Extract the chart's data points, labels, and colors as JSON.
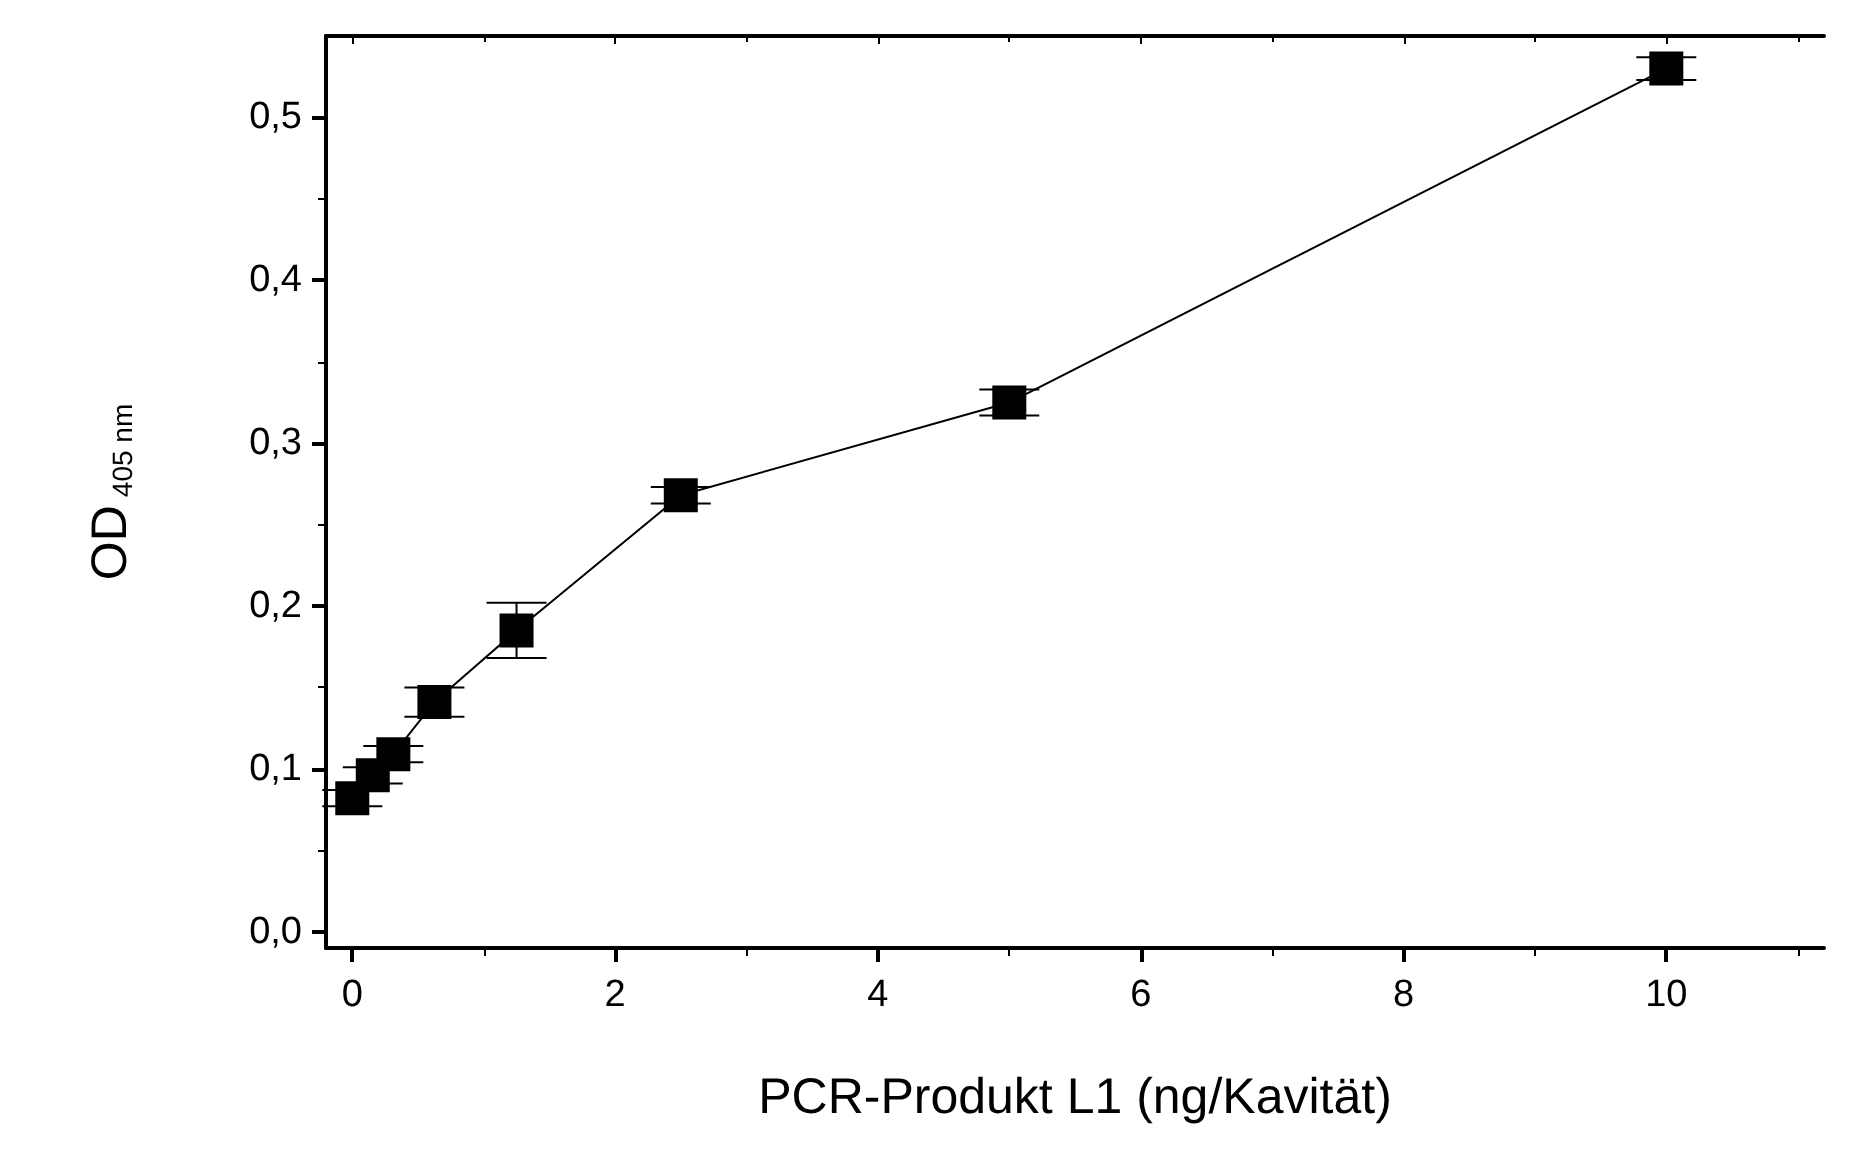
{
  "chart_data": {
    "type": "line",
    "xlabel": "PCR-Produkt L1 (ng/Kavität)",
    "ylabel": "OD$_{405 nm}$",
    "x": [
      0,
      0.156,
      0.3125,
      0.625,
      1.25,
      2.5,
      5,
      10
    ],
    "series": [
      {
        "color": "#000000",
        "values": [
          0.082,
          0.096,
          0.109,
          0.141,
          0.185,
          0.268,
          0.325,
          0.53
        ],
        "errors": [
          0.005,
          0.005,
          0.005,
          0.009,
          0.017,
          0.005,
          0.008,
          0.007
        ]
      }
    ],
    "xlim": [
      -0.2,
      11.2
    ],
    "xticks": [
      0,
      2,
      4,
      6,
      8,
      10
    ],
    "ylim": [
      -0.01,
      0.55
    ],
    "yticks": [
      {
        "value": 0,
        "label": "0,0"
      },
      {
        "value": 0.1,
        "label": "0,1"
      },
      {
        "value": 0.2,
        "label": "0,2"
      },
      {
        "value": 0.3,
        "label": "0,3"
      },
      {
        "value": 0.4,
        "label": "0,4"
      },
      {
        "value": 0.5,
        "label": "0,5"
      }
    ],
    "marker": "square",
    "line_style": "solid",
    "grid": false
  }
}
